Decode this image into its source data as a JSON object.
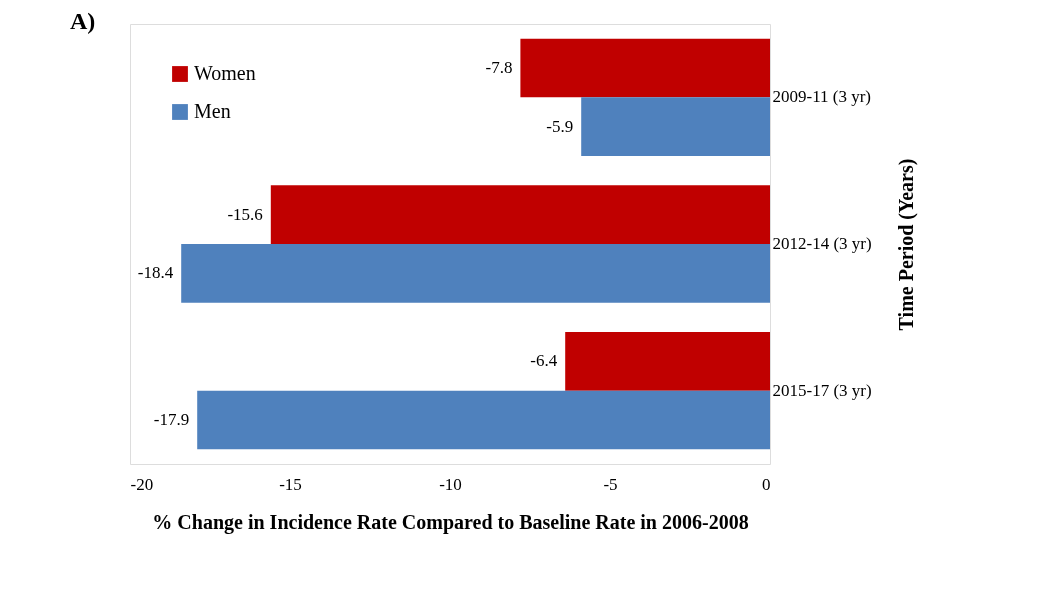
{
  "chart_data": {
    "type": "bar",
    "orientation": "horizontal",
    "title": "A)",
    "xlabel": "% Change in Incidence Rate Compared to Baseline Rate in 2006-2008",
    "ylabel": "Time Period (Years)",
    "categories": [
      "2009-11 (3 yr)",
      "2012-14 (3 yr)",
      "2015-17 (3 yr)"
    ],
    "series": [
      {
        "name": "Women",
        "color": "#c00000",
        "values": [
          -7.8,
          -15.6,
          -6.4
        ]
      },
      {
        "name": "Men",
        "color": "#4f81bd",
        "values": [
          -5.9,
          -18.4,
          -17.9
        ]
      }
    ],
    "xlim": [
      -20,
      0
    ],
    "xticks": [
      -20,
      -15,
      -10,
      -5,
      0
    ],
    "data_labels": true,
    "grid": false,
    "legend": "top left"
  }
}
